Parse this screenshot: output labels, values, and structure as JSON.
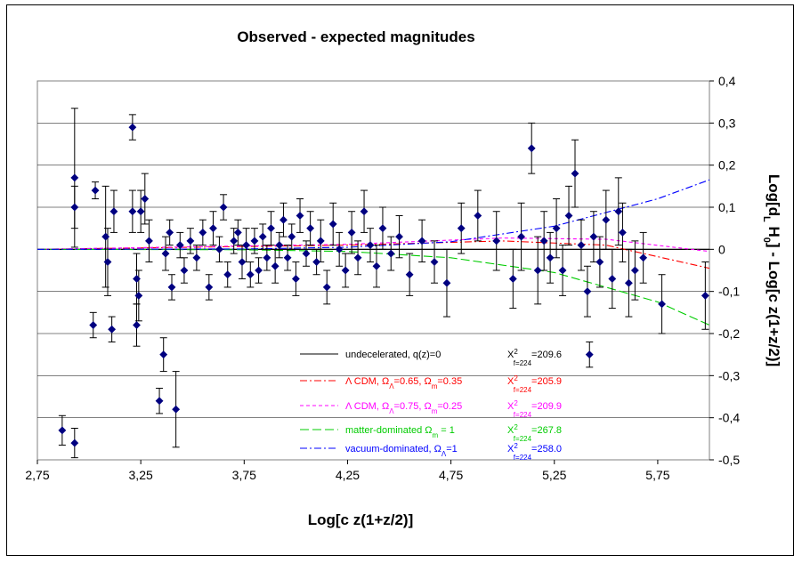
{
  "chart_data": {
    "type": "scatter",
    "title": "Observed - expected magnitudes",
    "xlabel": "Log[c z(1+z/2)]",
    "ylabel": "Log[d_L H_0] - Log[c z(1+z/2)]",
    "xlim": [
      2.75,
      6.0
    ],
    "ylim": [
      -0.5,
      0.4
    ],
    "x_ticks": [
      "2,75",
      "3,25",
      "3,75",
      "4,25",
      "4,75",
      "5,25",
      "5,75"
    ],
    "x_tick_values": [
      2.75,
      3.25,
      3.75,
      4.25,
      4.75,
      5.25,
      5.75
    ],
    "y_ticks": [
      "0,4",
      "0,3",
      "0,2",
      "0,1",
      "0",
      "-0,1",
      "-0,2",
      "-0,3",
      "-0,4",
      "-0,5"
    ],
    "y_tick_values": [
      0.4,
      0.3,
      0.2,
      0.1,
      0.0,
      -0.1,
      -0.2,
      -0.3,
      -0.4,
      -0.5
    ],
    "grid": "horizontal",
    "points": [
      {
        "x": 2.87,
        "y": -0.43,
        "err": 0.035
      },
      {
        "x": 2.93,
        "y": -0.46,
        "err": 0.035
      },
      {
        "x": 2.93,
        "y": 0.17,
        "err": 0.165
      },
      {
        "x": 2.93,
        "y": 0.1,
        "err": 0.05
      },
      {
        "x": 3.02,
        "y": -0.18,
        "err": 0.03
      },
      {
        "x": 3.03,
        "y": 0.14,
        "err": 0.02
      },
      {
        "x": 3.08,
        "y": 0.03,
        "err": 0.12
      },
      {
        "x": 3.09,
        "y": -0.03,
        "err": 0.08
      },
      {
        "x": 3.11,
        "y": -0.19,
        "err": 0.03
      },
      {
        "x": 3.12,
        "y": 0.09,
        "err": 0.05
      },
      {
        "x": 3.21,
        "y": 0.29,
        "err": 0.03
      },
      {
        "x": 3.21,
        "y": 0.09,
        "err": 0.05
      },
      {
        "x": 3.23,
        "y": -0.07,
        "err": 0.06
      },
      {
        "x": 3.23,
        "y": -0.18,
        "err": 0.05
      },
      {
        "x": 3.24,
        "y": -0.11,
        "err": 0.06
      },
      {
        "x": 3.25,
        "y": 0.09,
        "err": 0.05
      },
      {
        "x": 3.27,
        "y": 0.12,
        "err": 0.06
      },
      {
        "x": 3.29,
        "y": 0.02,
        "err": 0.05
      },
      {
        "x": 3.34,
        "y": -0.36,
        "err": 0.03
      },
      {
        "x": 3.36,
        "y": -0.25,
        "err": 0.04
      },
      {
        "x": 3.37,
        "y": -0.01,
        "err": 0.04
      },
      {
        "x": 3.39,
        "y": 0.04,
        "err": 0.03
      },
      {
        "x": 3.4,
        "y": -0.09,
        "err": 0.03
      },
      {
        "x": 3.42,
        "y": -0.38,
        "err": 0.09
      },
      {
        "x": 3.44,
        "y": 0.01,
        "err": 0.03
      },
      {
        "x": 3.46,
        "y": -0.05,
        "err": 0.03
      },
      {
        "x": 3.49,
        "y": 0.02,
        "err": 0.03
      },
      {
        "x": 3.52,
        "y": -0.02,
        "err": 0.03
      },
      {
        "x": 3.55,
        "y": 0.04,
        "err": 0.03
      },
      {
        "x": 3.58,
        "y": -0.09,
        "err": 0.03
      },
      {
        "x": 3.6,
        "y": 0.05,
        "err": 0.04
      },
      {
        "x": 3.63,
        "y": 0.0,
        "err": 0.03
      },
      {
        "x": 3.65,
        "y": 0.1,
        "err": 0.03
      },
      {
        "x": 3.67,
        "y": -0.06,
        "err": 0.03
      },
      {
        "x": 3.7,
        "y": 0.02,
        "err": 0.03
      },
      {
        "x": 3.72,
        "y": 0.04,
        "err": 0.03
      },
      {
        "x": 3.74,
        "y": -0.03,
        "err": 0.04
      },
      {
        "x": 3.76,
        "y": 0.01,
        "err": 0.04
      },
      {
        "x": 3.78,
        "y": -0.06,
        "err": 0.03
      },
      {
        "x": 3.8,
        "y": 0.02,
        "err": 0.03
      },
      {
        "x": 3.82,
        "y": -0.05,
        "err": 0.03
      },
      {
        "x": 3.84,
        "y": 0.03,
        "err": 0.03
      },
      {
        "x": 3.86,
        "y": -0.02,
        "err": 0.03
      },
      {
        "x": 3.88,
        "y": 0.05,
        "err": 0.04
      },
      {
        "x": 3.9,
        "y": -0.04,
        "err": 0.04
      },
      {
        "x": 3.92,
        "y": 0.01,
        "err": 0.03
      },
      {
        "x": 3.94,
        "y": 0.07,
        "err": 0.04
      },
      {
        "x": 3.96,
        "y": -0.02,
        "err": 0.03
      },
      {
        "x": 3.98,
        "y": 0.03,
        "err": 0.03
      },
      {
        "x": 4.0,
        "y": -0.07,
        "err": 0.04
      },
      {
        "x": 4.02,
        "y": 0.08,
        "err": 0.04
      },
      {
        "x": 4.05,
        "y": -0.01,
        "err": 0.03
      },
      {
        "x": 4.07,
        "y": 0.05,
        "err": 0.04
      },
      {
        "x": 4.1,
        "y": -0.03,
        "err": 0.03
      },
      {
        "x": 4.12,
        "y": 0.02,
        "err": 0.05
      },
      {
        "x": 4.15,
        "y": -0.09,
        "err": 0.04
      },
      {
        "x": 4.18,
        "y": 0.06,
        "err": 0.05
      },
      {
        "x": 4.21,
        "y": 0.0,
        "err": 0.04
      },
      {
        "x": 4.24,
        "y": -0.05,
        "err": 0.04
      },
      {
        "x": 4.27,
        "y": 0.04,
        "err": 0.05
      },
      {
        "x": 4.3,
        "y": -0.02,
        "err": 0.04
      },
      {
        "x": 4.33,
        "y": 0.09,
        "err": 0.05
      },
      {
        "x": 4.36,
        "y": 0.01,
        "err": 0.04
      },
      {
        "x": 4.39,
        "y": -0.04,
        "err": 0.05
      },
      {
        "x": 4.42,
        "y": 0.05,
        "err": 0.05
      },
      {
        "x": 4.46,
        "y": -0.01,
        "err": 0.04
      },
      {
        "x": 4.5,
        "y": 0.03,
        "err": 0.05
      },
      {
        "x": 4.55,
        "y": -0.06,
        "err": 0.05
      },
      {
        "x": 4.61,
        "y": 0.02,
        "err": 0.05
      },
      {
        "x": 4.67,
        "y": -0.03,
        "err": 0.05
      },
      {
        "x": 4.73,
        "y": -0.08,
        "err": 0.08
      },
      {
        "x": 4.8,
        "y": 0.05,
        "err": 0.06
      },
      {
        "x": 4.88,
        "y": 0.08,
        "err": 0.06
      },
      {
        "x": 4.97,
        "y": 0.02,
        "err": 0.07
      },
      {
        "x": 5.05,
        "y": -0.07,
        "err": 0.07
      },
      {
        "x": 5.09,
        "y": 0.03,
        "err": 0.08
      },
      {
        "x": 5.14,
        "y": 0.24,
        "err": 0.06
      },
      {
        "x": 5.17,
        "y": -0.05,
        "err": 0.08
      },
      {
        "x": 5.2,
        "y": 0.02,
        "err": 0.07
      },
      {
        "x": 5.23,
        "y": -0.02,
        "err": 0.06
      },
      {
        "x": 5.26,
        "y": 0.05,
        "err": 0.07
      },
      {
        "x": 5.29,
        "y": -0.05,
        "err": 0.06
      },
      {
        "x": 5.32,
        "y": 0.08,
        "err": 0.07
      },
      {
        "x": 5.35,
        "y": 0.18,
        "err": 0.08
      },
      {
        "x": 5.38,
        "y": 0.01,
        "err": 0.06
      },
      {
        "x": 5.41,
        "y": -0.1,
        "err": 0.06
      },
      {
        "x": 5.42,
        "y": -0.25,
        "err": 0.03
      },
      {
        "x": 5.44,
        "y": 0.03,
        "err": 0.06
      },
      {
        "x": 5.47,
        "y": -0.03,
        "err": 0.06
      },
      {
        "x": 5.5,
        "y": 0.07,
        "err": 0.07
      },
      {
        "x": 5.53,
        "y": -0.07,
        "err": 0.07
      },
      {
        "x": 5.56,
        "y": 0.09,
        "err": 0.08
      },
      {
        "x": 5.58,
        "y": 0.04,
        "err": 0.07
      },
      {
        "x": 5.61,
        "y": -0.08,
        "err": 0.08
      },
      {
        "x": 5.64,
        "y": -0.05,
        "err": 0.07
      },
      {
        "x": 5.68,
        "y": -0.02,
        "err": 0.06
      },
      {
        "x": 5.77,
        "y": -0.13,
        "err": 0.07
      },
      {
        "x": 5.98,
        "y": -0.11,
        "err": 0.08
      }
    ],
    "series": [
      {
        "name": "undecelerated, q(z)=0",
        "chi2_label": "X",
        "chi2_sub": "f=224",
        "chi2_value": "=209.6",
        "color": "#000000",
        "dash": "",
        "curve": [
          [
            2.75,
            0
          ],
          [
            6.0,
            0
          ]
        ]
      },
      {
        "name": "Λ CDM, Ω_Λ=0.65, Ω_m=0.35",
        "label_parts": [
          "Λ CDM, Ω",
          "Λ",
          "=0.65, Ω",
          "m",
          "=0.35"
        ],
        "chi2_label": "X",
        "chi2_sub": "f=224",
        "chi2_value": "=205.9",
        "color": "#ff0000",
        "dash": "8,3,2,3",
        "curve": [
          [
            2.75,
            0
          ],
          [
            4.25,
            0.01
          ],
          [
            5.0,
            0.02
          ],
          [
            5.5,
            0.01
          ],
          [
            6.0,
            -0.045
          ]
        ]
      },
      {
        "name": "Λ CDM, Ω_Λ=0.75, Ω_m=0.25",
        "label_parts": [
          "Λ CDM, Ω",
          "Λ",
          "=0.75, Ω",
          "m",
          "=0.25"
        ],
        "chi2_label": "X",
        "chi2_sub": "f=224",
        "chi2_value": "=209.9",
        "color": "#ff00ff",
        "dash": "4,3",
        "curve": [
          [
            2.75,
            0
          ],
          [
            4.25,
            0.012
          ],
          [
            5.0,
            0.027
          ],
          [
            5.5,
            0.024
          ],
          [
            6.0,
            -0.005
          ]
        ]
      },
      {
        "name": "matter-dominated Ω_m = 1",
        "label_parts": [
          "matter-dominated Ω",
          "m",
          " = 1"
        ],
        "chi2_label": "X",
        "chi2_sub": "f=224",
        "chi2_value": "=267.8",
        "color": "#00cc00",
        "dash": "10,4",
        "curve": [
          [
            2.75,
            0
          ],
          [
            3.75,
            -0.001
          ],
          [
            4.25,
            -0.005
          ],
          [
            4.75,
            -0.02
          ],
          [
            5.25,
            -0.055
          ],
          [
            5.75,
            -0.125
          ],
          [
            6.0,
            -0.18
          ]
        ]
      },
      {
        "name": "vacuum-dominated, Ω_Λ=1",
        "label_parts": [
          "vacuum-dominated, Ω",
          "Λ",
          "=1"
        ],
        "chi2_label": "X",
        "chi2_sub": "f=224",
        "chi2_value": "=258.0",
        "color": "#0000ff",
        "dash": "8,3,2,3",
        "curve": [
          [
            2.75,
            0
          ],
          [
            3.75,
            0.001
          ],
          [
            4.25,
            0.005
          ],
          [
            4.75,
            0.018
          ],
          [
            5.25,
            0.055
          ],
          [
            5.75,
            0.12
          ],
          [
            6.0,
            0.165
          ]
        ]
      }
    ]
  }
}
